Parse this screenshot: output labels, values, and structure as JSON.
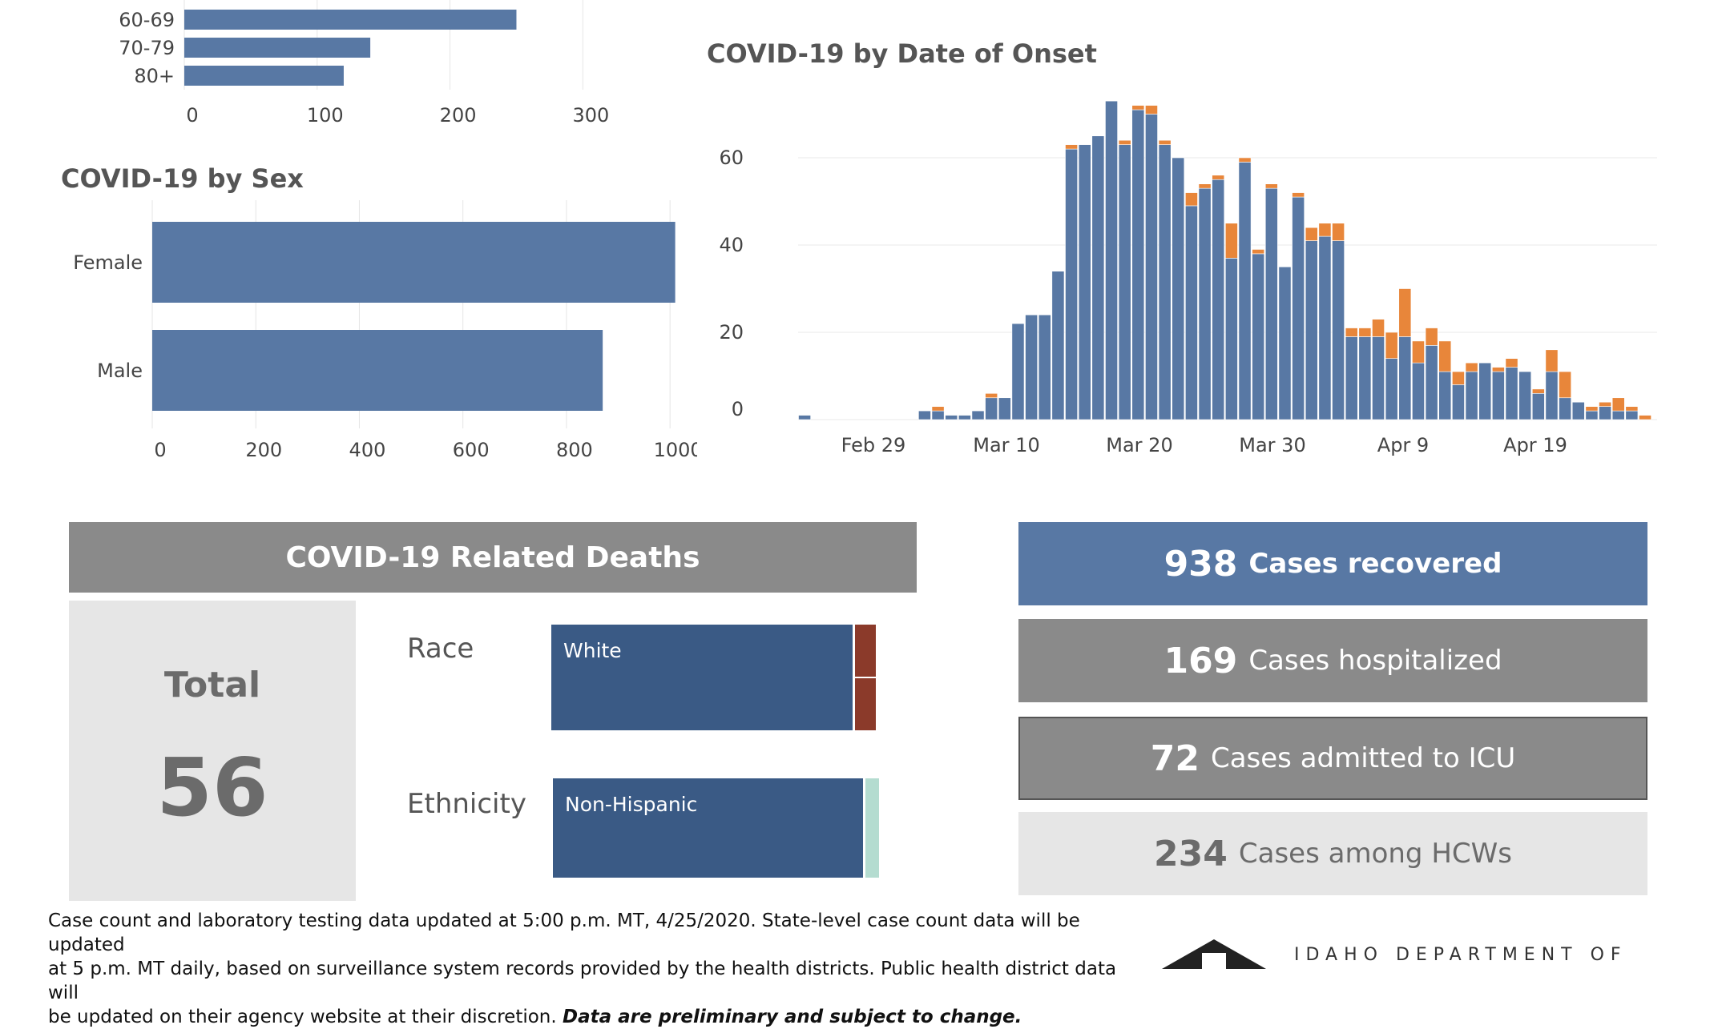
{
  "age_chart": {
    "categories": [
      "60-69",
      "70-79",
      "80+"
    ],
    "values": [
      250,
      140,
      120
    ],
    "xticks": [
      "0",
      "100",
      "200",
      "300"
    ],
    "xlim": [
      0,
      380
    ]
  },
  "sex_chart": {
    "title": "COVID-19 by Sex",
    "categories": [
      "Female",
      "Male"
    ],
    "values": [
      1010,
      870
    ],
    "xticks": [
      "0",
      "200",
      "400",
      "600",
      "800",
      "1000"
    ],
    "xlim": [
      0,
      1040
    ]
  },
  "onset_chart": {
    "title": "COVID-19 by Date of Onset",
    "yticks": [
      "0",
      "20",
      "40",
      "60"
    ],
    "xticks": [
      "Feb 29",
      "Mar 10",
      "Mar 20",
      "Mar 30",
      "Apr 9",
      "Apr 19"
    ]
  },
  "chart_data": [
    {
      "type": "bar",
      "orientation": "horizontal",
      "categories": [
        "60-69",
        "70-79",
        "80+"
      ],
      "values": [
        250,
        140,
        120
      ],
      "xlim": [
        0,
        380
      ],
      "grid": true
    },
    {
      "type": "bar",
      "orientation": "horizontal",
      "title": "COVID-19 by Sex",
      "categories": [
        "Female",
        "Male"
      ],
      "values": [
        1010,
        870
      ],
      "xlim": [
        0,
        1040
      ],
      "grid": true,
      "colors": {
        "bar": "#5878a4"
      }
    },
    {
      "type": "bar",
      "stacked": true,
      "title": "COVID-19 by Date of Onset",
      "x_start": "2020-02-21",
      "xlim": [
        "2020-02-20",
        "2020-04-28"
      ],
      "ylim": [
        -3,
        75
      ],
      "grid": true,
      "series": [
        {
          "color": "#5878a4",
          "values": [
            1,
            0,
            0,
            0,
            0,
            0,
            0,
            0,
            0,
            2,
            2,
            1,
            1,
            2,
            5,
            5,
            22,
            24,
            24,
            34,
            62,
            63,
            65,
            73,
            63,
            71,
            70,
            63,
            60,
            49,
            53,
            55,
            37,
            59,
            38,
            53,
            35,
            51,
            41,
            42,
            41,
            19,
            19,
            19,
            14,
            19,
            13,
            17,
            11,
            8,
            11,
            13,
            11,
            12,
            11,
            6,
            11,
            5,
            4,
            2,
            3,
            2,
            2,
            0,
            0
          ]
        },
        {
          "color": "#e8863a",
          "values": [
            0,
            0,
            0,
            0,
            0,
            0,
            0,
            0,
            0,
            0,
            1,
            0,
            0,
            0,
            1,
            0,
            0,
            0,
            0,
            0,
            1,
            0,
            0,
            0,
            1,
            1,
            2,
            1,
            0,
            3,
            1,
            1,
            8,
            1,
            1,
            1,
            0,
            1,
            3,
            3,
            4,
            2,
            2,
            4,
            6,
            11,
            5,
            4,
            7,
            3,
            2,
            0,
            1,
            2,
            0,
            1,
            5,
            6,
            0,
            1,
            1,
            3,
            1,
            1,
            0
          ]
        }
      ]
    }
  ],
  "deaths": {
    "header": "COVID-19 Related Deaths",
    "total_label": "Total",
    "total_value": "56",
    "race_label": "Race",
    "race_segment": "White",
    "ethnicity_label": "Ethnicity",
    "ethnicity_segment": "Non-Hispanic",
    "colors": {
      "primary": "#3a5a85",
      "race_other": "#8b3a2a",
      "eth_other": "#b4dcd0"
    }
  },
  "stats": [
    {
      "value": "938",
      "label": "Cases recovered",
      "bg": "#5878a4",
      "fg": "#ffffff"
    },
    {
      "value": "169",
      "label": "Cases hospitalized",
      "bg": "#8a8a8a",
      "fg": "#ffffff"
    },
    {
      "value": "72",
      "label": "Cases admitted to ICU",
      "bg": "#8a8a8a",
      "fg": "#ffffff"
    },
    {
      "value": "234",
      "label": "Cases among HCWs",
      "bg": "#e6e6e6",
      "fg": "#6b6b6b"
    }
  ],
  "footer": {
    "line1": "Case count and laboratory testing data updated at 5:00 p.m. MT, 4/25/2020. State-level case count data will be updated",
    "line2": "at 5 p.m. MT daily, based on surveillance system records provided by the health districts. Public health district data will",
    "line3": "be updated on their agency website at their discretion.",
    "line3_emphasis": "Data are preliminary and subject to change."
  },
  "logo_text": "IDAHO DEPARTMENT OF"
}
